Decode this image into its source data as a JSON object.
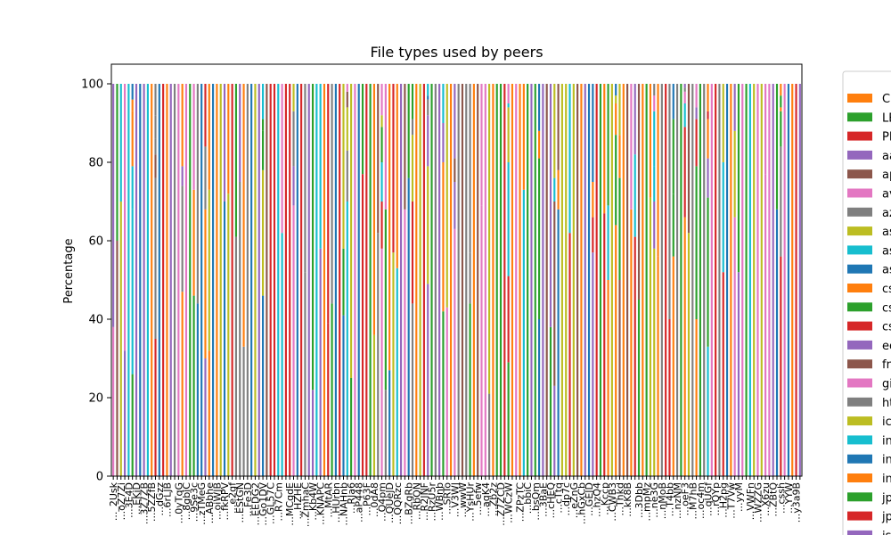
{
  "chart_data": {
    "type": "bar",
    "stacked": true,
    "title": "File types used by peers",
    "xlabel": "",
    "ylabel": "Percentage",
    "ylim": [
      0,
      105
    ],
    "yticks": [
      0,
      20,
      40,
      60,
      80,
      100
    ],
    "grid": false,
    "legend_position": "right",
    "bar_count": 180,
    "visible_tick_labels": [
      "..._2Usk",
      "...oZ7Zi",
      "...3E4D",
      "...EKiD",
      "...3Z7ZB",
      "...5ZZfB",
      "...dGzz",
      "...6rLJB",
      "...0yTqG",
      "...8gbiC",
      "...9Se3c",
      "...zTMeG",
      "...ABbhe",
      "...oiWJB",
      "...fkRPV",
      "...e2gf",
      "...EStGN",
      "...Fe3D",
      "...EEDG2",
      "...Go1DV",
      "...GL57C",
      "...R7Cm",
      "...MCqdE",
      "...HZHE",
      "...ZmhaC",
      "...Kb4W",
      "...KNAPC",
      "...MtAR",
      "...HUrbn",
      "...NAHnb",
      "...RJa6",
      "...aP448",
      "...P63F",
      "...0dA8",
      "...Q4pm",
      "...QUeJD",
      "...QQRzc",
      "...BZgRb",
      "...RbQN",
      "...R2JNF",
      "...RzU5r",
      "...WBnb",
      "...SRTo",
      "...V3WJ",
      "...wwW",
      "...YsHUr",
      "...5efw",
      "...aqK4",
      "...Zb2z",
      "...Z7ZCD",
      "...WCzW",
      "...ZPzTC",
      "...bbiC",
      "...bsQm",
      "...3BaE",
      "...cHEQ",
      "...cTtq",
      "...dp7c",
      "...eZnG",
      "...hGxCb",
      "...GEJD",
      "...hzQ4",
      "...Kccp",
      "...CWB3",
      "...Thkd",
      "...kK8B",
      "...3Dbb",
      "...mpMz",
      "...ne3G",
      "...nMoB",
      "...T4bb",
      "...nzNM",
      "...oeF3",
      "...M7hB",
      "...oc4m",
      "...qUGf",
      "...rQYp",
      "...H2pg",
      "...T7Vw",
      "...yyM",
      "...VWFn",
      "...WZZG",
      "...X6zu",
      "...ZBtQ",
      "...cssh",
      "...YYW",
      "...y3a9B"
    ],
    "series": [
      {
        "name": "CSS",
        "color": "#ff7f0e"
      },
      {
        "name": "LESS",
        "color": "#2ca02c"
      },
      {
        "name": "PNG",
        "color": "#d62728"
      },
      {
        "name": "aac",
        "color": "#9467bd"
      },
      {
        "name": "apk",
        "color": "#8c564b"
      },
      {
        "name": "avi",
        "color": "#e377c2"
      },
      {
        "name": "azw",
        "color": "#7f7f7f"
      },
      {
        "name": "asf",
        "color": "#bcbd22"
      },
      {
        "name": "asm",
        "color": "#17becf"
      },
      {
        "name": "asp",
        "color": "#1f77b4"
      },
      {
        "name": "csv",
        "color": "#ff7f0e"
      },
      {
        "name": "csh",
        "color": "#2ca02c"
      },
      {
        "name": "css",
        "color": "#d62728"
      },
      {
        "name": "eot",
        "color": "#9467bd"
      },
      {
        "name": "fnt",
        "color": "#8c564b"
      },
      {
        "name": "gif",
        "color": "#e377c2"
      },
      {
        "name": "htm",
        "color": "#7f7f7f"
      },
      {
        "name": "ico",
        "color": "#bcbd22"
      },
      {
        "name": "ini",
        "color": "#17becf"
      },
      {
        "name": "ink",
        "color": "#1f77b4"
      },
      {
        "name": "ins",
        "color": "#ff7f0e"
      },
      {
        "name": "jpg",
        "color": "#2ca02c"
      },
      {
        "name": "jpeg",
        "color": "#d62728"
      },
      {
        "name": "jsx",
        "color": "#9467bd"
      }
    ]
  }
}
